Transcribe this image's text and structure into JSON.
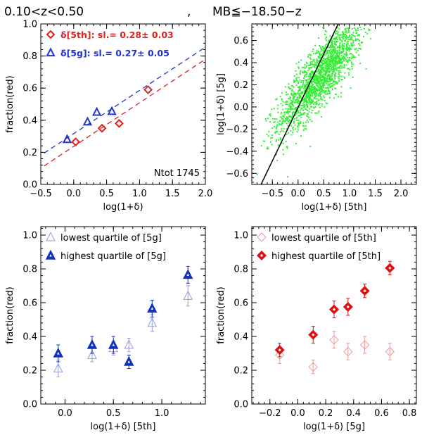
{
  "header": {
    "title_left": "0.10<z<0.50",
    "title_sep": ",",
    "title_right": "MB≦−18.50−z"
  },
  "chart_data": [
    {
      "id": "tl",
      "type": "scatter",
      "xlabel": "log(1+δ)",
      "ylabel": "fraction(red)",
      "xlim": [
        -0.5,
        2.0
      ],
      "ylim": [
        0.0,
        1.0
      ],
      "xticks": [
        -0.5,
        0.0,
        0.5,
        1.0,
        1.5,
        2.0
      ],
      "xticklabels": [
        "−0.5",
        "0.0",
        "0.5",
        "1.0",
        "1.5",
        "2.0"
      ],
      "yticks": [
        0.0,
        0.2,
        0.4,
        0.6,
        0.8,
        1.0
      ],
      "yticklabels": [
        "0.0",
        "0.2",
        "0.4",
        "0.6",
        "0.8",
        "1.0"
      ],
      "legend": [
        {
          "label": "δ[5th]: sl.= 0.28± 0.03",
          "color": "#dd2222",
          "marker": "diamond"
        },
        {
          "label": "δ[5g]: sl.= 0.27± 0.05",
          "color": "#2233cc",
          "marker": "triangle"
        }
      ],
      "annotation": "Ntot  1745",
      "series": [
        {
          "name": "δ[5th]",
          "color": "#dd2222",
          "marker": "diamond",
          "x": [
            0.03,
            0.43,
            0.69,
            1.13
          ],
          "y": [
            0.265,
            0.35,
            0.38,
            0.59
          ]
        },
        {
          "name": "δ[5g]",
          "color": "#2233cc",
          "marker": "triangle",
          "x": [
            -0.1,
            0.21,
            0.35,
            0.58
          ],
          "y": [
            0.28,
            0.39,
            0.45,
            0.455
          ]
        }
      ],
      "fits": [
        {
          "color": "#dd2222",
          "x": [
            -0.45,
            2.0
          ],
          "y": [
            0.115,
            0.78
          ]
        },
        {
          "color": "#2233cc",
          "x": [
            -0.45,
            2.0
          ],
          "y": [
            0.195,
            0.855
          ]
        }
      ]
    },
    {
      "id": "tr",
      "type": "scatter",
      "xlabel": "log(1+δ)  [5th]",
      "ylabel": "log(1+δ)  [5g]",
      "xlim": [
        -0.9,
        2.3
      ],
      "ylim": [
        -0.7,
        0.75
      ],
      "xticks": [
        -0.5,
        0.0,
        0.5,
        1.0,
        1.5,
        2.0
      ],
      "xticklabels": [
        "−0.5",
        "0.0",
        "0.5",
        "1.0",
        "1.5",
        "2.0"
      ],
      "yticks": [
        -0.6,
        -0.4,
        -0.2,
        0.0,
        0.2,
        0.4,
        0.6
      ],
      "yticklabels": [
        "−0.6",
        "−0.4",
        "−0.2",
        "0.0",
        "0.2",
        "0.4",
        "0.6"
      ],
      "cloud": {
        "count": 1745,
        "color": "#33ee33",
        "seed": 12345
      },
      "fit_line": {
        "color": "#000000",
        "x": [
          -0.72,
          0.78
        ],
        "y": [
          -0.7,
          0.75
        ]
      }
    },
    {
      "id": "bl",
      "type": "scatter",
      "xlabel": "log(1+δ)  [5th]",
      "ylabel": "fraction(red)",
      "xlim": [
        -0.25,
        1.45
      ],
      "ylim": [
        0.0,
        1.05
      ],
      "xticks": [
        0.0,
        0.5,
        1.0
      ],
      "xticklabels": [
        "0.0",
        "0.5",
        "1.0"
      ],
      "yticks": [
        0.0,
        0.2,
        0.4,
        0.6,
        0.8,
        1.0
      ],
      "yticklabels": [
        "0.0",
        "0.2",
        "0.4",
        "0.6",
        "0.8",
        "1.0"
      ],
      "legend": [
        {
          "label": "lowest quartile of  [5g]",
          "color": "#9999dd",
          "marker": "triangle-open"
        },
        {
          "label": "highest quartile of  [5g]",
          "color": "#1133bb",
          "marker": "triangle-filled"
        }
      ],
      "series": [
        {
          "name": "lowest quartile of [5g]",
          "color": "#9999dd",
          "marker": "triangle-open",
          "x": [
            -0.07,
            0.28,
            0.5,
            0.66,
            0.9,
            1.27
          ],
          "y": [
            0.21,
            0.29,
            0.33,
            0.35,
            0.48,
            0.64
          ],
          "err": [
            0.05,
            0.04,
            0.04,
            0.04,
            0.05,
            0.06
          ]
        },
        {
          "name": "highest quartile of [5g]",
          "color": "#1133bb",
          "marker": "triangle-filled",
          "x": [
            -0.07,
            0.28,
            0.5,
            0.66,
            0.9,
            1.27
          ],
          "y": [
            0.3,
            0.35,
            0.35,
            0.25,
            0.565,
            0.765
          ],
          "err": [
            0.05,
            0.05,
            0.05,
            0.04,
            0.05,
            0.05
          ]
        }
      ]
    },
    {
      "id": "br",
      "type": "scatter",
      "xlabel": "log(1+δ)  [5g]",
      "ylabel": "fraction(red)",
      "xlim": [
        -0.33,
        0.85
      ],
      "ylim": [
        0.0,
        1.05
      ],
      "xticks": [
        -0.2,
        0.0,
        0.2,
        0.4,
        0.6,
        0.8
      ],
      "xticklabels": [
        "−0.2",
        "0.0",
        "0.2",
        "0.4",
        "0.6",
        "0.8"
      ],
      "yticks": [
        0.0,
        0.2,
        0.4,
        0.6,
        0.8,
        1.0
      ],
      "yticklabels": [
        "0.0",
        "0.2",
        "0.4",
        "0.6",
        "0.8",
        "1.0"
      ],
      "legend": [
        {
          "label": "lowest quartile of  [5th]",
          "color": "#ee9999",
          "marker": "diamond-open"
        },
        {
          "label": "highest quartile of  [5th]",
          "color": "#dd1111",
          "marker": "diamond-filled"
        }
      ],
      "series": [
        {
          "name": "lowest quartile of [5th]",
          "color": "#ee9999",
          "marker": "diamond-open",
          "x": [
            -0.13,
            0.11,
            0.26,
            0.36,
            0.48,
            0.66
          ],
          "y": [
            0.29,
            0.22,
            0.38,
            0.31,
            0.35,
            0.31
          ],
          "err": [
            0.05,
            0.04,
            0.05,
            0.05,
            0.05,
            0.05
          ]
        },
        {
          "name": "highest quartile of [5th]",
          "color": "#dd1111",
          "marker": "diamond-filled",
          "x": [
            -0.13,
            0.11,
            0.26,
            0.36,
            0.48,
            0.66
          ],
          "y": [
            0.32,
            0.41,
            0.56,
            0.575,
            0.67,
            0.805
          ],
          "err": [
            0.04,
            0.05,
            0.05,
            0.05,
            0.04,
            0.04
          ]
        }
      ]
    }
  ]
}
